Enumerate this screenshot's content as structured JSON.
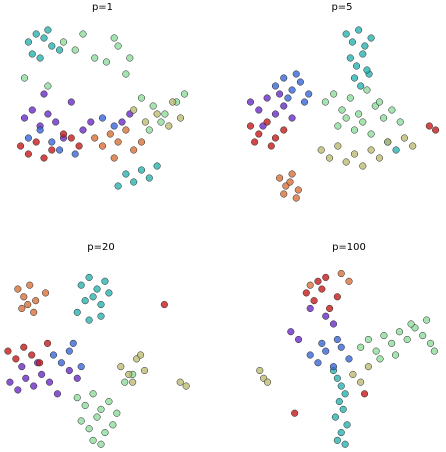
{
  "chart_data": [
    {
      "type": "scatter",
      "title": "p=1",
      "xlim": [
        0,
        100
      ],
      "ylim": [
        0,
        100
      ],
      "series": [
        {
          "color": "#2ab3b0",
          "x": [
            12,
            16,
            20,
            24,
            28,
            14,
            18,
            62,
            66,
            70,
            74,
            78,
            58,
            22
          ],
          "y": [
            88,
            92,
            90,
            86,
            84,
            82,
            80,
            22,
            18,
            24,
            20,
            26,
            16,
            94
          ]
        },
        {
          "color": "#8fdc9c",
          "x": [
            30,
            36,
            40,
            46,
            52,
            58,
            62,
            70,
            76,
            82,
            88,
            92,
            80,
            74,
            10,
            22,
            56,
            64
          ],
          "y": [
            88,
            84,
            92,
            80,
            78,
            86,
            72,
            60,
            56,
            52,
            58,
            62,
            48,
            44,
            70,
            66,
            90,
            80
          ]
        },
        {
          "color": "#6a2cc4",
          "x": [
            10,
            14,
            18,
            22,
            26,
            40,
            44,
            30,
            20,
            34,
            60,
            64
          ],
          "y": [
            50,
            54,
            46,
            52,
            48,
            44,
            48,
            40,
            62,
            58,
            48,
            52
          ]
        },
        {
          "color": "#c41a1a",
          "x": [
            8,
            12,
            16,
            20,
            24,
            30,
            34,
            38
          ],
          "y": [
            36,
            32,
            38,
            30,
            34,
            42,
            40,
            36
          ]
        },
        {
          "color": "#d8703a",
          "x": [
            46,
            50,
            54,
            58,
            62,
            66,
            70,
            56
          ],
          "y": [
            40,
            36,
            42,
            38,
            44,
            34,
            38,
            30
          ]
        },
        {
          "color": "#3a66d4",
          "x": [
            12,
            18,
            24,
            28,
            36,
            50,
            56
          ],
          "y": [
            40,
            44,
            38,
            34,
            32,
            50,
            46
          ]
        },
        {
          "color": "#bcbc74",
          "x": [
            66,
            72,
            78,
            84,
            90,
            86
          ],
          "y": [
            54,
            48,
            52,
            46,
            50,
            58
          ]
        }
      ]
    },
    {
      "type": "scatter",
      "title": "p=5",
      "xlim": [
        0,
        100
      ],
      "ylim": [
        0,
        100
      ],
      "series": [
        {
          "color": "#2ab3b0",
          "x": [
            52,
            55,
            58,
            61,
            64,
            54,
            57,
            60,
            63,
            56,
            59,
            62,
            72,
            76
          ],
          "y": [
            92,
            88,
            94,
            86,
            90,
            80,
            76,
            82,
            72,
            70,
            66,
            74,
            38,
            34
          ]
        },
        {
          "color": "#8fdc9c",
          "x": [
            42,
            46,
            50,
            54,
            58,
            62,
            66,
            70,
            74,
            78,
            48,
            52,
            56,
            60,
            64,
            68
          ],
          "y": [
            58,
            62,
            54,
            60,
            52,
            64,
            56,
            50,
            54,
            48,
            46,
            50,
            44,
            48,
            42,
            58
          ]
        },
        {
          "color": "#6a2cc4",
          "x": [
            6,
            10,
            14,
            18,
            22,
            26,
            12,
            20
          ],
          "y": [
            58,
            54,
            60,
            52,
            56,
            50,
            46,
            62
          ]
        },
        {
          "color": "#c41a1a",
          "x": [
            6,
            10,
            14,
            18,
            22,
            8,
            16,
            92,
            95
          ],
          "y": [
            46,
            42,
            48,
            40,
            44,
            38,
            36,
            46,
            44
          ]
        },
        {
          "color": "#d8703a",
          "x": [
            20,
            23,
            26,
            29,
            22,
            25,
            28
          ],
          "y": [
            20,
            16,
            22,
            14,
            12,
            18,
            10
          ]
        },
        {
          "color": "#3a66d4",
          "x": [
            18,
            22,
            26,
            30,
            34,
            24,
            28,
            32
          ],
          "y": [
            66,
            70,
            64,
            68,
            62,
            60,
            72,
            58
          ]
        },
        {
          "color": "#bcbc74",
          "x": [
            40,
            44,
            48,
            52,
            56,
            60,
            64,
            68,
            72,
            80,
            84
          ],
          "y": [
            34,
            30,
            36,
            28,
            32,
            26,
            34,
            30,
            38,
            40,
            36
          ]
        }
      ]
    },
    {
      "type": "scatter",
      "title": "p=20",
      "xlim": [
        0,
        100
      ],
      "ylim": [
        0,
        100
      ],
      "series": [
        {
          "color": "#2ab3b0",
          "x": [
            40,
            44,
            48,
            52,
            42,
            46,
            50,
            54,
            38,
            44,
            50
          ],
          "y": [
            86,
            90,
            84,
            88,
            78,
            80,
            76,
            82,
            72,
            68,
            70
          ]
        },
        {
          "color": "#8fdc9c",
          "x": [
            38,
            42,
            46,
            50,
            54,
            58,
            40,
            44,
            48,
            52,
            56,
            46,
            50,
            62,
            66
          ],
          "y": [
            28,
            24,
            30,
            22,
            26,
            20,
            16,
            12,
            18,
            10,
            14,
            6,
            4,
            36,
            40
          ]
        },
        {
          "color": "#6a2cc4",
          "x": [
            4,
            8,
            12,
            16,
            20,
            24,
            28,
            10,
            18,
            34,
            38
          ],
          "y": [
            36,
            32,
            38,
            34,
            40,
            36,
            30,
            44,
            46,
            42,
            38
          ]
        },
        {
          "color": "#c41a1a",
          "x": [
            3,
            7,
            11,
            15,
            19,
            23,
            82
          ],
          "y": [
            52,
            48,
            54,
            50,
            46,
            56,
            76
          ]
        },
        {
          "color": "#d8703a",
          "x": [
            8,
            11,
            14,
            17,
            10,
            13,
            16,
            22
          ],
          "y": [
            84,
            80,
            86,
            78,
            74,
            76,
            72,
            82
          ]
        },
        {
          "color": "#3a66d4",
          "x": [
            26,
            30,
            34,
            40,
            36
          ],
          "y": [
            50,
            46,
            52,
            44,
            56
          ]
        },
        {
          "color": "#bcbc74",
          "x": [
            60,
            64,
            68,
            72,
            66,
            70,
            90,
            93
          ],
          "y": [
            44,
            40,
            48,
            42,
            36,
            50,
            36,
            34
          ]
        }
      ]
    },
    {
      "type": "scatter",
      "title": "p=100",
      "xlim": [
        0,
        100
      ],
      "ylim": [
        0,
        100
      ],
      "series": [
        {
          "color": "#2ab3b0",
          "x": [
            42,
            44,
            46,
            48,
            45,
            47,
            43,
            49,
            46,
            44,
            48
          ],
          "y": [
            42,
            38,
            34,
            30,
            26,
            22,
            18,
            14,
            10,
            6,
            4
          ]
        },
        {
          "color": "#8fdc9c",
          "x": [
            56,
            60,
            64,
            68,
            72,
            76,
            80,
            84,
            88,
            92,
            66,
            74,
            82,
            90,
            94
          ],
          "y": [
            54,
            58,
            52,
            60,
            56,
            62,
            58,
            64,
            60,
            56,
            48,
            50,
            66,
            68,
            52
          ]
        },
        {
          "color": "#6a2cc4",
          "x": [
            20,
            24,
            38,
            42,
            30
          ],
          "y": [
            62,
            58,
            70,
            66,
            74
          ]
        },
        {
          "color": "#c41a1a",
          "x": [
            28,
            32,
            36,
            40,
            44,
            34,
            38,
            22,
            58
          ],
          "y": [
            82,
            78,
            84,
            74,
            80,
            88,
            90,
            20,
            30
          ]
        },
        {
          "color": "#d8703a",
          "x": [
            30,
            46,
            50
          ],
          "y": [
            86,
            92,
            88
          ]
        },
        {
          "color": "#3a66d4",
          "x": [
            30,
            34,
            38,
            42,
            46,
            50,
            36,
            44
          ],
          "y": [
            50,
            46,
            52,
            44,
            54,
            48,
            56,
            58
          ]
        },
        {
          "color": "#bcbc74",
          "x": [
            4,
            6,
            8,
            52,
            56,
            60
          ],
          "y": [
            42,
            38,
            36,
            40,
            36,
            44
          ]
        }
      ]
    }
  ]
}
